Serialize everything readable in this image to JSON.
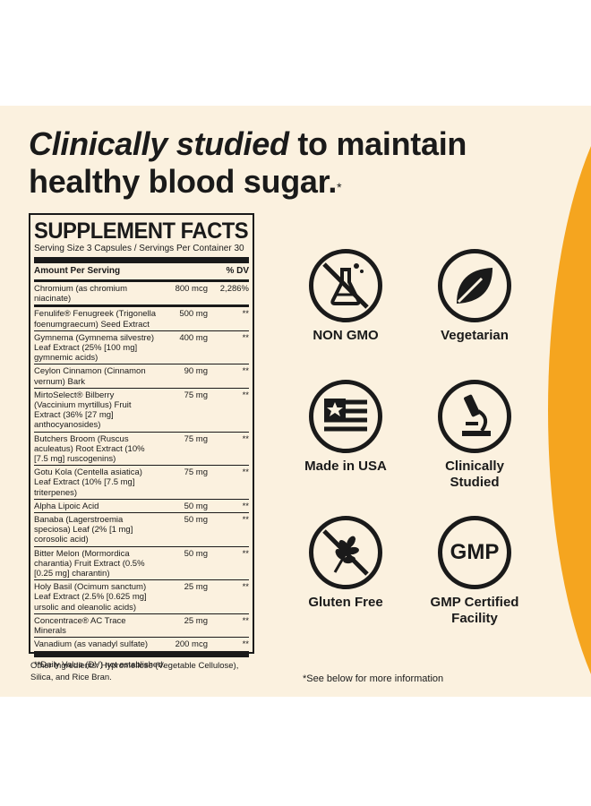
{
  "headline": {
    "italic": "Clinically studied",
    "rest": " to maintain healthy blood sugar.",
    "mark": "*"
  },
  "supplement_facts": {
    "title": "SUPPLEMENT FACTS",
    "serving": "Serving Size 3 Capsules / Servings Per Container 30",
    "col_amount": "Amount Per Serving",
    "col_dv": "% DV",
    "rows": [
      {
        "name": "Chromium (as chromium niacinate)",
        "amount": "800 mcg",
        "dv": "2,286%"
      },
      {
        "name": "Fenulife® Fenugreek (Trigonella foenumgraecum) Seed Extract",
        "amount": "500 mg",
        "dv": "**"
      },
      {
        "name": "Gymnema (Gymnema silvestre) Leaf Extract (25% [100 mg] gymnemic acids)",
        "amount": "400 mg",
        "dv": "**"
      },
      {
        "name": "Ceylon Cinnamon (Cinnamon vernum) Bark",
        "amount": "90 mg",
        "dv": "**"
      },
      {
        "name": "MirtoSelect® Bilberry (Vaccinium myrtillus) Fruit Extract (36% [27 mg] anthocyanosides)",
        "amount": "75 mg",
        "dv": "**"
      },
      {
        "name": "Butchers Broom (Ruscus aculeatus) Root Extract (10% [7.5 mg] ruscogenins)",
        "amount": "75 mg",
        "dv": "**"
      },
      {
        "name": "Gotu Kola (Centella asiatica) Leaf Extract (10% [7.5 mg] triterpenes)",
        "amount": "75 mg",
        "dv": "**"
      },
      {
        "name": "Alpha Lipoic Acid",
        "amount": "50 mg",
        "dv": "**"
      },
      {
        "name": "Banaba (Lagerstroemia speciosa) Leaf (2% [1 mg] corosolic acid)",
        "amount": "50 mg",
        "dv": "**"
      },
      {
        "name": "Bitter Melon (Mormordica charantia) Fruit Extract (0.5% [0.25 mg] charantin)",
        "amount": "50 mg",
        "dv": "**"
      },
      {
        "name": "Holy Basil (Ocimum sanctum) Leaf Extract (2.5% [0.625 mg] ursolic and oleanolic acids)",
        "amount": "25 mg",
        "dv": "**"
      },
      {
        "name": "Concentrace® AC Trace Minerals",
        "amount": "25 mg",
        "dv": "**"
      },
      {
        "name": "Vanadium (as vanadyl sulfate)",
        "amount": "200 mcg",
        "dv": "**"
      }
    ],
    "footnote": "**Daily Value (DV) not established.",
    "other_ingredients": "Other Ingredients: Hypromellose (Vegetable Cellulose), Silica, and Rice Bran."
  },
  "badges": {
    "non_gmo": "NON GMO",
    "vegetarian": "Vegetarian",
    "usa": "Made in USA",
    "clinically": "Clinically Studied",
    "gluten": "Gluten Free",
    "gmp_label": "GMP Certified Facility",
    "gmp_icon_text": "GMP"
  },
  "see_below": "*See below for more information",
  "colors": {
    "panel": "#fbf1df",
    "accent": "#f5a51f",
    "ink": "#1a1a1a"
  }
}
